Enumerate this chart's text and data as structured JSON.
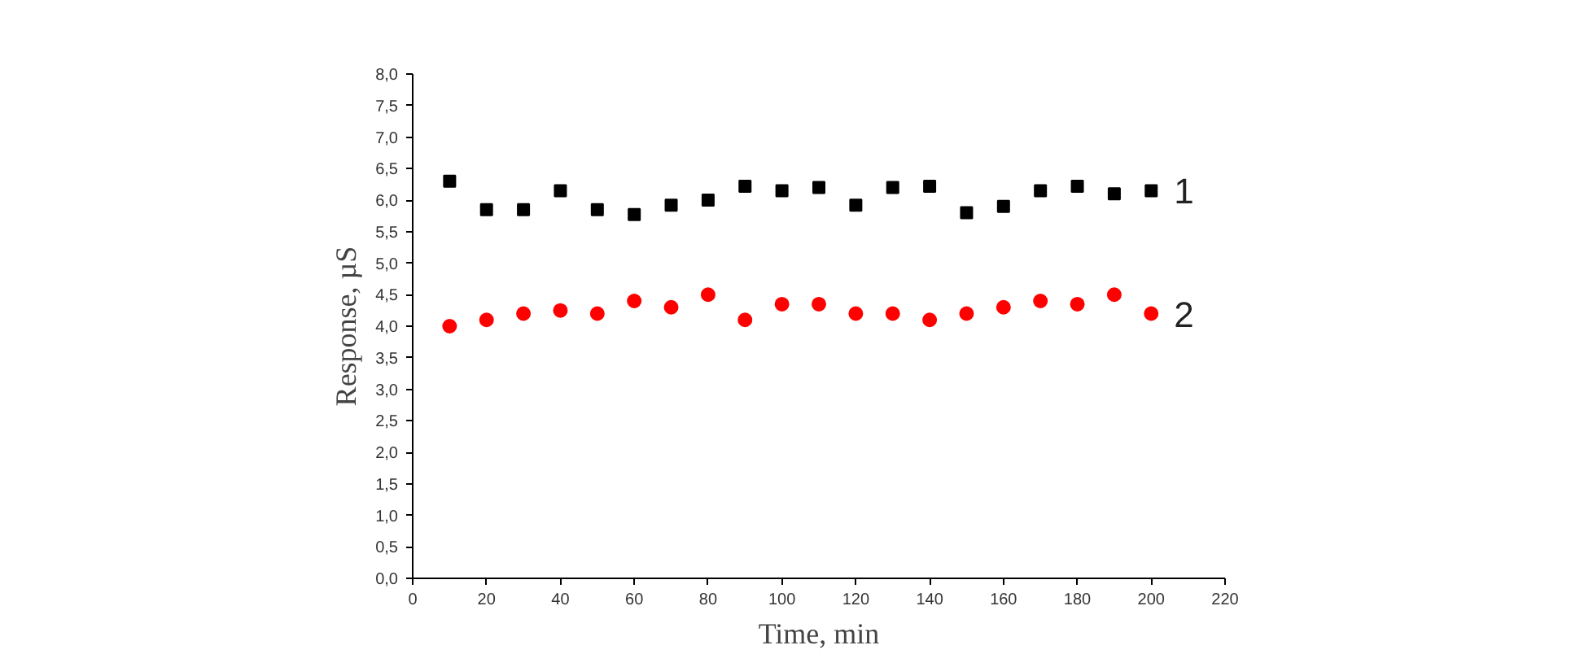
{
  "chart_data": {
    "type": "scatter",
    "xlabel": "Time, min",
    "ylabel": "Response, µS",
    "x": [
      10,
      20,
      30,
      40,
      50,
      60,
      70,
      80,
      90,
      100,
      110,
      120,
      130,
      140,
      150,
      160,
      170,
      180,
      190,
      200
    ],
    "series": [
      {
        "name": "1",
        "color": "#000000",
        "marker": "square",
        "values": [
          6.3,
          5.85,
          5.85,
          6.15,
          5.85,
          5.77,
          5.92,
          6.0,
          6.22,
          6.15,
          6.2,
          5.92,
          6.2,
          6.22,
          5.8,
          5.9,
          6.15,
          6.22,
          6.1,
          6.15
        ]
      },
      {
        "name": "2",
        "color": "#ff0000",
        "marker": "circle",
        "values": [
          4.0,
          4.1,
          4.2,
          4.25,
          4.2,
          4.4,
          4.3,
          4.5,
          4.1,
          4.35,
          4.35,
          4.2,
          4.2,
          4.1,
          4.2,
          4.3,
          4.4,
          4.35,
          4.5,
          4.2
        ]
      }
    ],
    "xlim": [
      0,
      220
    ],
    "xticks": [
      0,
      20,
      40,
      60,
      80,
      100,
      120,
      140,
      160,
      180,
      200,
      220
    ],
    "ylim": [
      0,
      8
    ],
    "yticks": [
      {
        "value": 0,
        "label": "0,0"
      },
      {
        "value": 0.5,
        "label": "0,5"
      },
      {
        "value": 1,
        "label": "1,0"
      },
      {
        "value": 1.5,
        "label": "1,5"
      },
      {
        "value": 2,
        "label": "2,0"
      },
      {
        "value": 2.5,
        "label": "2,5"
      },
      {
        "value": 3,
        "label": "3,0"
      },
      {
        "value": 3.5,
        "label": "3,5"
      },
      {
        "value": 4,
        "label": "4,0"
      },
      {
        "value": 4.5,
        "label": "4,5"
      },
      {
        "value": 5,
        "label": "5,0"
      },
      {
        "value": 5.5,
        "label": "5,5"
      },
      {
        "value": 6,
        "label": "6,0"
      },
      {
        "value": 6.5,
        "label": "6,5"
      },
      {
        "value": 7,
        "label": "7,0"
      },
      {
        "value": 7.5,
        "label": "7,5"
      },
      {
        "value": 8,
        "label": "8,0"
      }
    ],
    "grid": false
  }
}
